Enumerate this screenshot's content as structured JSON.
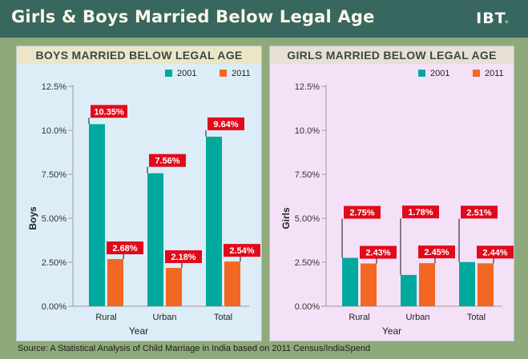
{
  "title": "Girls & Boys Married Below Legal Age",
  "logo": {
    "text": "IBT",
    "dot": "."
  },
  "source": "Source: A Statistical Analysis of Child Marriage in India based on 2011 Census/IndiaSpend",
  "colors": {
    "series_2001": "#00a99d",
    "series_2011": "#f26722",
    "label_bg": "#e10a1b",
    "boys_bg": "#dcedf7",
    "girls_bg": "#f5e1f7",
    "header_bg": "#37675f"
  },
  "chart_data": [
    {
      "type": "bar",
      "title": "BOYS MARRIED BELOW LEGAL AGE",
      "xlabel": "Year",
      "ylabel": "Boys",
      "categories": [
        "Rural",
        "Urban",
        "Total"
      ],
      "ylim": [
        0,
        12.5
      ],
      "yticks": [
        "0.00%",
        "2.50%",
        "5.00%",
        "7.50%",
        "10.0%",
        "12.5%"
      ],
      "legend_position": "top-right",
      "series": [
        {
          "name": "2001",
          "values": [
            10.35,
            7.56,
            9.64
          ],
          "labels": [
            "10.35%",
            "7.56%",
            "9.64%"
          ]
        },
        {
          "name": "2011",
          "values": [
            2.68,
            2.18,
            2.54
          ],
          "labels": [
            "2.68%",
            "2.18%",
            "2.54%"
          ]
        }
      ]
    },
    {
      "type": "bar",
      "title": "GIRLS MARRIED BELOW LEGAL AGE",
      "xlabel": "Year",
      "ylabel": "Girls",
      "categories": [
        "Rural",
        "Urban",
        "Total"
      ],
      "ylim": [
        0,
        12.5
      ],
      "yticks": [
        "0.00%",
        "2.50%",
        "5.00%",
        "7.50%",
        "10.0%",
        "12.5%"
      ],
      "legend_position": "top-right",
      "series": [
        {
          "name": "2001",
          "values": [
            2.75,
            1.78,
            2.51
          ],
          "labels": [
            "2.75%",
            "1.78%",
            "2.51%"
          ]
        },
        {
          "name": "2011",
          "values": [
            2.43,
            2.45,
            2.44
          ],
          "labels": [
            "2.43%",
            "2.45%",
            "2.44%"
          ]
        }
      ]
    }
  ]
}
